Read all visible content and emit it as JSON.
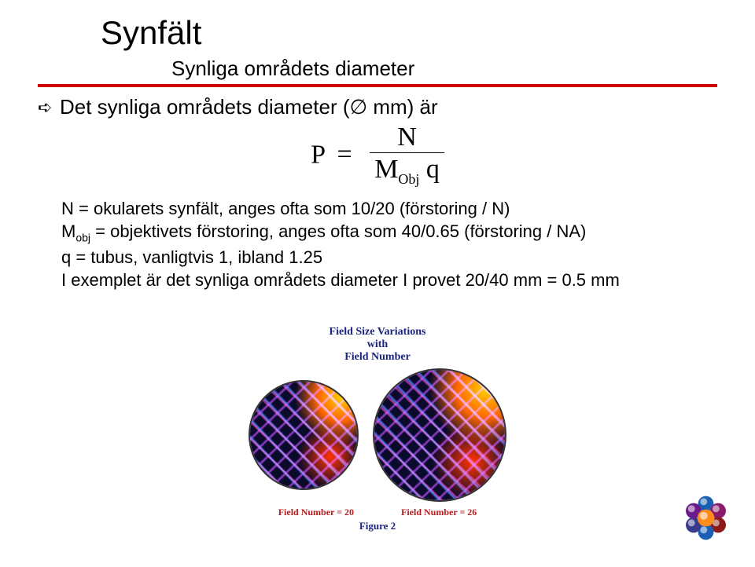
{
  "title": "Synfält",
  "subtitle": "Synliga områdets diameter",
  "bullet": "Det synliga områdets diameter (∅ mm) är",
  "formula": {
    "lhs": "P",
    "eq": "=",
    "num": "N",
    "den_base": "M",
    "den_sub": "Obj",
    "den_tail": " q"
  },
  "desc_lines": [
    "N = okularets synfält, anges ofta som 10/20 (förstoring / N)",
    "M__SUB__obj__ = objektivets förstoring, anges ofta som 40/0.65 (förstoring / NA)",
    "q = tubus, vanligtvis 1, ibland 1.25",
    "I exemplet är det synliga områdets diameter I provet 20/40 mm = 0.5 mm"
  ],
  "figure": {
    "title_line1": "Field Size Variations",
    "title_line2": "with",
    "title_line3": "Field Number",
    "left_label": "Field Number = 20",
    "right_label": "Field Number = 26",
    "caption": "Figure 2"
  },
  "colors": {
    "rule": "#cc0000",
    "text": "#000000",
    "fig_title": "#1a237e",
    "fig_label": "#b71c1c"
  },
  "logo": {
    "center_color": "#ff8c1a",
    "petal_colors": [
      "#1a5fb4",
      "#8b1a6b",
      "#8b1a1a",
      "#1a5fb4",
      "#3a3a8b",
      "#6b1a8b"
    ]
  }
}
